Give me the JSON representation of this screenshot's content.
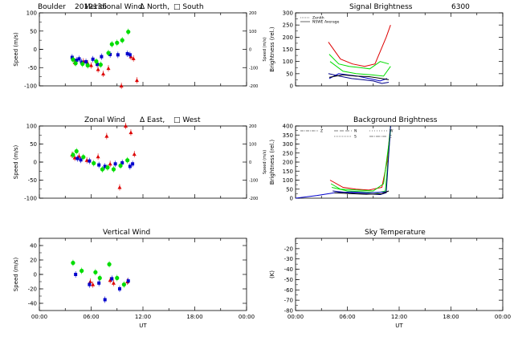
{
  "header": {
    "site": "Boulder",
    "date_code": "2012136"
  },
  "colors": {
    "north": "#dd0000",
    "south": "#0000cc",
    "east": "#dd0000",
    "west": "#0000cc",
    "green": "#00dd00",
    "black": "#000000"
  },
  "chart_data": [
    {
      "id": "meridional",
      "type": "scatter",
      "title": "Meridional Wind",
      "legend_text": [
        "Δ North,",
        "□ South"
      ],
      "ylabel": "Speed (m/s)",
      "ylabel_right": "Speed (m/s)",
      "xlim": [
        0,
        24
      ],
      "ylim": [
        -100,
        100
      ],
      "yticks": [
        "-100",
        "-50",
        "0",
        "50",
        "100"
      ],
      "ylim_right": [
        -200,
        200
      ],
      "yticks_right": [
        "-200",
        "-100",
        "0",
        "100",
        "200"
      ],
      "series": [
        {
          "color": "red",
          "marker": "triangle",
          "points": [
            [
              4.1,
              -36
            ],
            [
              5.1,
              -33
            ],
            [
              5.6,
              -38
            ],
            [
              6.0,
              -44
            ],
            [
              6.8,
              -55
            ],
            [
              7.4,
              -67
            ],
            [
              8.0,
              -52
            ],
            [
              9.5,
              -100
            ],
            [
              10.6,
              -20
            ],
            [
              10.9,
              -25
            ],
            [
              11.3,
              -85
            ]
          ]
        },
        {
          "color": "blue",
          "marker": "square",
          "points": [
            [
              3.8,
              -22
            ],
            [
              4.3,
              -30
            ],
            [
              4.6,
              -26
            ],
            [
              4.9,
              -35
            ],
            [
              5.4,
              -34
            ],
            [
              6.2,
              -27
            ],
            [
              6.7,
              -41
            ],
            [
              7.2,
              -20
            ],
            [
              8.2,
              -14
            ],
            [
              9.1,
              -15
            ],
            [
              10.2,
              -12
            ],
            [
              10.5,
              -15
            ]
          ]
        },
        {
          "color": "green",
          "marker": "circle",
          "points": [
            [
              3.9,
              -28
            ],
            [
              4.2,
              -38
            ],
            [
              5.0,
              -40
            ],
            [
              5.6,
              -44
            ],
            [
              6.6,
              -33
            ],
            [
              7.1,
              -42
            ],
            [
              8.0,
              -10
            ],
            [
              8.4,
              14
            ],
            [
              9.0,
              18
            ],
            [
              9.6,
              25
            ],
            [
              10.3,
              48
            ]
          ]
        }
      ]
    },
    {
      "id": "signal",
      "type": "line",
      "title": "Signal Brightness",
      "title_extra": "6300",
      "ylabel": "Brightness (rel.)",
      "xlim": [
        0,
        24
      ],
      "ylim": [
        0,
        300
      ],
      "yticks": [
        "0",
        "50",
        "100",
        "150",
        "200",
        "250",
        "300"
      ],
      "legend": [
        "Zenith",
        "NSWE Average"
      ],
      "series": [
        {
          "color": "red",
          "points": [
            [
              3.8,
              180
            ],
            [
              5.2,
              110
            ],
            [
              6.6,
              90
            ],
            [
              8.0,
              80
            ],
            [
              9.2,
              90
            ],
            [
              10.5,
              200
            ],
            [
              11.0,
              250
            ]
          ]
        },
        {
          "color": "green",
          "points": [
            [
              3.9,
              130
            ],
            [
              5.0,
              90
            ],
            [
              6.2,
              80
            ],
            [
              7.5,
              75
            ],
            [
              8.6,
              70
            ],
            [
              9.8,
              100
            ],
            [
              10.8,
              90
            ]
          ]
        },
        {
          "color": "green",
          "points": [
            [
              4.0,
              100
            ],
            [
              5.5,
              60
            ],
            [
              7.0,
              50
            ],
            [
              8.8,
              45
            ],
            [
              10.2,
              40
            ],
            [
              11.0,
              80
            ]
          ]
        },
        {
          "color": "blue",
          "points": [
            [
              3.9,
              30
            ],
            [
              5.0,
              50
            ],
            [
              6.0,
              45
            ],
            [
              7.2,
              40
            ],
            [
              8.5,
              30
            ],
            [
              9.8,
              20
            ],
            [
              10.6,
              30
            ]
          ]
        },
        {
          "color": "navy",
          "points": [
            [
              3.8,
              50
            ],
            [
              5.1,
              40
            ],
            [
              6.5,
              30
            ],
            [
              7.8,
              25
            ],
            [
              9.0,
              20
            ],
            [
              10.0,
              10
            ],
            [
              10.8,
              15
            ]
          ]
        },
        {
          "color": "black",
          "points": [
            [
              3.9,
              35
            ],
            [
              5.5,
              45
            ],
            [
              7.0,
              40
            ],
            [
              8.5,
              38
            ],
            [
              10.0,
              30
            ],
            [
              10.8,
              25
            ]
          ]
        }
      ]
    },
    {
      "id": "zonal",
      "type": "scatter",
      "title": "Zonal Wind",
      "legend_text": [
        "Δ East,",
        "□ West"
      ],
      "ylabel": "Speed (m/s)",
      "ylabel_right": "Speed (m/s)",
      "xlim": [
        0,
        24
      ],
      "ylim": [
        -100,
        100
      ],
      "yticks": [
        "-100",
        "-50",
        "0",
        "50",
        "100"
      ],
      "ylim_right": [
        -200,
        200
      ],
      "yticks_right": [
        "-200",
        "-100",
        "0",
        "100",
        "200"
      ],
      "series": [
        {
          "color": "red",
          "marker": "triangle",
          "points": [
            [
              3.8,
              20
            ],
            [
              4.1,
              12
            ],
            [
              4.6,
              16
            ],
            [
              5.5,
              5
            ],
            [
              6.8,
              15
            ],
            [
              7.8,
              72
            ],
            [
              8.2,
              -5
            ],
            [
              9.3,
              -70
            ],
            [
              10.0,
              100
            ],
            [
              10.6,
              82
            ],
            [
              11.0,
              22
            ]
          ]
        },
        {
          "color": "blue",
          "marker": "square",
          "points": [
            [
              4.4,
              10
            ],
            [
              4.8,
              6
            ],
            [
              5.8,
              3
            ],
            [
              6.9,
              -8
            ],
            [
              7.6,
              -12
            ],
            [
              8.8,
              -5
            ],
            [
              9.6,
              -2
            ],
            [
              10.5,
              -12
            ],
            [
              10.8,
              -5
            ]
          ]
        },
        {
          "color": "green",
          "marker": "circle",
          "points": [
            [
              3.9,
              20
            ],
            [
              4.3,
              30
            ],
            [
              5.1,
              14
            ],
            [
              6.3,
              -3
            ],
            [
              7.3,
              -20
            ],
            [
              7.9,
              -15
            ],
            [
              8.6,
              -20
            ],
            [
              9.4,
              -10
            ],
            [
              10.2,
              5
            ]
          ]
        }
      ]
    },
    {
      "id": "background",
      "type": "line",
      "title": "Background Brightness",
      "ylabel": "Brightness (rel.)",
      "xlim": [
        0,
        24
      ],
      "ylim": [
        0,
        400
      ],
      "yticks": [
        "0",
        "50",
        "100",
        "150",
        "200",
        "250",
        "300",
        "350",
        "400"
      ],
      "legend": [
        "Z",
        "N",
        "S",
        "W",
        "E"
      ],
      "series": [
        {
          "color": "red",
          "points": [
            [
              4.0,
              100
            ],
            [
              5.5,
              60
            ],
            [
              7.0,
              50
            ],
            [
              8.5,
              45
            ],
            [
              10.0,
              60
            ],
            [
              10.6,
              200
            ],
            [
              11.0,
              400
            ]
          ]
        },
        {
          "color": "green",
          "points": [
            [
              4.1,
              80
            ],
            [
              5.2,
              50
            ],
            [
              7.2,
              45
            ],
            [
              9.0,
              40
            ],
            [
              10.2,
              80
            ],
            [
              10.8,
              300
            ],
            [
              11.0,
              400
            ]
          ]
        },
        {
          "color": "green",
          "points": [
            [
              4.2,
              60
            ],
            [
              6.0,
              40
            ],
            [
              7.8,
              35
            ],
            [
              9.5,
              30
            ],
            [
              10.4,
              40
            ],
            [
              10.7,
              200
            ],
            [
              11.0,
              380
            ]
          ]
        },
        {
          "color": "blue",
          "points": [
            [
              0.0,
              0
            ],
            [
              2.5,
              15
            ],
            [
              4.5,
              30
            ],
            [
              6.5,
              35
            ],
            [
              8.5,
              30
            ],
            [
              10.5,
              35
            ]
          ]
        },
        {
          "color": "navy",
          "points": [
            [
              4.3,
              40
            ],
            [
              6.2,
              30
            ],
            [
              8.0,
              25
            ],
            [
              9.8,
              20
            ],
            [
              10.5,
              30
            ],
            [
              11.0,
              400
            ]
          ]
        },
        {
          "color": "black",
          "points": [
            [
              4.5,
              30
            ],
            [
              6.5,
              25
            ],
            [
              8.2,
              22
            ],
            [
              10.0,
              25
            ],
            [
              10.8,
              40
            ]
          ]
        }
      ]
    },
    {
      "id": "vertical",
      "type": "scatter",
      "title": "Vertical Wind",
      "ylabel": "Speed (m/s)",
      "xlim": [
        0,
        24
      ],
      "ylim": [
        -50,
        50
      ],
      "yticks": [
        "-40",
        "-20",
        "0",
        "20",
        "40"
      ],
      "xlabel": "UT",
      "xticks": [
        "00:00",
        "06:00",
        "12:00",
        "18:00",
        "00:00"
      ],
      "series": [
        {
          "color": "red",
          "marker": "triangle",
          "points": [
            [
              5.9,
              -10
            ],
            [
              6.2,
              -14
            ],
            [
              8.2,
              -8
            ],
            [
              8.6,
              -12
            ],
            [
              10.2,
              -10
            ]
          ]
        },
        {
          "color": "blue",
          "marker": "square",
          "points": [
            [
              4.2,
              0
            ],
            [
              5.8,
              -14
            ],
            [
              6.9,
              -12
            ],
            [
              7.6,
              -35
            ],
            [
              8.4,
              -6
            ],
            [
              9.3,
              -20
            ],
            [
              10.3,
              -9
            ]
          ]
        },
        {
          "color": "green",
          "marker": "circle",
          "points": [
            [
              3.9,
              16
            ],
            [
              4.9,
              5
            ],
            [
              6.5,
              3
            ],
            [
              7.0,
              -5
            ],
            [
              8.1,
              14
            ],
            [
              9.0,
              -5
            ],
            [
              9.8,
              -14
            ]
          ]
        }
      ]
    },
    {
      "id": "skytemp",
      "type": "scatter",
      "title": "Sky Temperature",
      "ylabel": "(K)",
      "xlim": [
        0,
        24
      ],
      "ylim": [
        -80,
        -10
      ],
      "yticks": [
        "-80",
        "-70",
        "-60",
        "-50",
        "-40",
        "-30",
        "-20"
      ],
      "xlabel": "UT",
      "xticks": [
        "00:00",
        "06:00",
        "12:00",
        "18:00",
        "00:00"
      ],
      "series": []
    }
  ]
}
